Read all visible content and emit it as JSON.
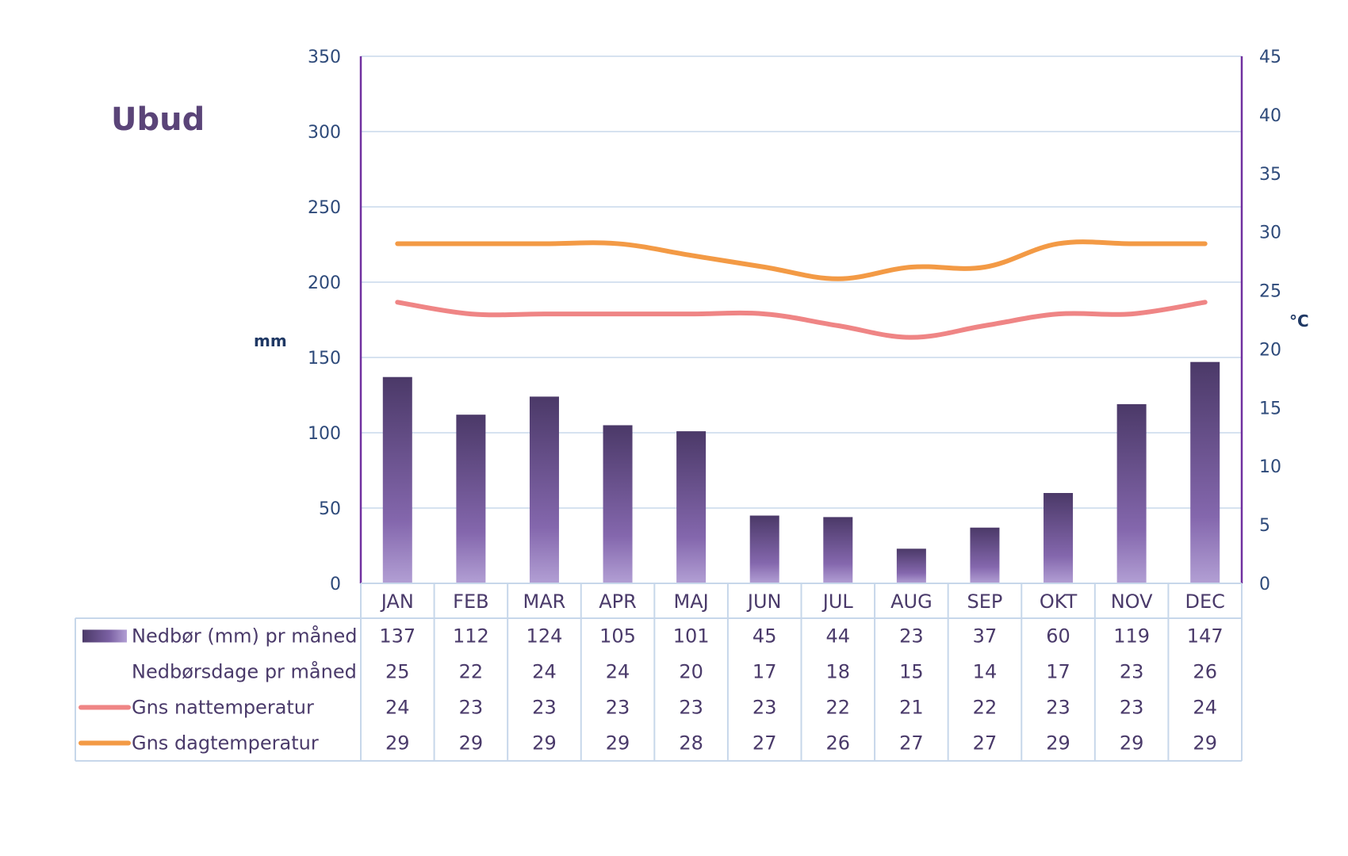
{
  "chart_data": {
    "type": "bar",
    "title": "Ubud",
    "y_left_label": "mm",
    "y_right_label": "°C",
    "y_left_lim": [
      0,
      350
    ],
    "y_left_ticks": [
      0,
      50,
      100,
      150,
      200,
      250,
      300,
      350
    ],
    "y_right_lim": [
      0,
      45
    ],
    "y_right_ticks": [
      0,
      5,
      10,
      15,
      20,
      25,
      30,
      35,
      40,
      45
    ],
    "grid": true,
    "legend": "data-table",
    "categories": [
      "JAN",
      "FEB",
      "MAR",
      "APR",
      "MAJ",
      "JUN",
      "JUL",
      "AUG",
      "SEP",
      "OKT",
      "NOV",
      "DEC"
    ],
    "series": [
      {
        "name": "Nedbør (mm) pr måned",
        "kind": "bar",
        "axis": "left",
        "values": [
          137,
          112,
          124,
          105,
          101,
          45,
          44,
          23,
          37,
          60,
          119,
          147
        ],
        "color": "#5c4a80"
      },
      {
        "name": "Nedbørsdage pr måned",
        "kind": "table-only",
        "values": [
          25,
          22,
          24,
          24,
          20,
          17,
          18,
          15,
          14,
          17,
          23,
          26
        ]
      },
      {
        "name": "Gns nattemperatur",
        "kind": "line",
        "axis": "right",
        "values": [
          24,
          23,
          23,
          23,
          23,
          23,
          22,
          21,
          22,
          23,
          23,
          24
        ],
        "color": "#ef8585"
      },
      {
        "name": "Gns dagtemperatur",
        "kind": "line",
        "axis": "right",
        "values": [
          29,
          29,
          29,
          29,
          28,
          27,
          26,
          27,
          27,
          29,
          29,
          29
        ],
        "color": "#f39a45"
      }
    ],
    "colors": {
      "bar_top": "#4b3968",
      "bar_bottom": "#b29fd4",
      "axis_line": "#7030a0",
      "grid": "#d6e2f0",
      "table_border": "#c7d7ea"
    }
  }
}
